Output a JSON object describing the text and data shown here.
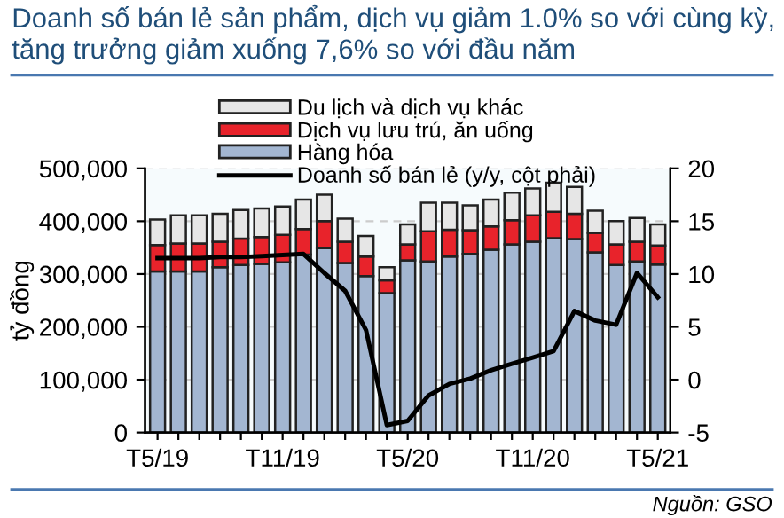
{
  "chart_data": {
    "type": "bar",
    "stacked": true,
    "title": "Doanh số bán lẻ sản phẩm, dịch vụ giảm 1.0% so với cùng kỳ,\ntăng trưởng giảm xuống 7,6% so với đầu năm",
    "ylabel": "tỷ đồng",
    "categories": [
      "T5/19",
      null,
      null,
      null,
      null,
      null,
      "T11/19",
      null,
      null,
      null,
      null,
      null,
      "T5/20",
      null,
      null,
      null,
      null,
      null,
      "T11/20",
      null,
      null,
      null,
      null,
      null,
      "T5/21"
    ],
    "series": [
      {
        "name": "Hàng hóa",
        "color": "#a3b6d1",
        "values": [
          305000,
          305000,
          305000,
          313000,
          317000,
          319000,
          322000,
          337000,
          349000,
          321000,
          296000,
          264000,
          326000,
          324000,
          333000,
          338000,
          346000,
          356000,
          361000,
          368000,
          366000,
          341000,
          317000,
          324000,
          318000
        ]
      },
      {
        "name": "Dịch vụ lưu trú, ăn uống",
        "color": "#e8232b",
        "values": [
          50000,
          53000,
          53000,
          48000,
          50000,
          51000,
          52000,
          48000,
          51000,
          40000,
          37000,
          24000,
          30000,
          57000,
          51000,
          45000,
          44000,
          46000,
          50000,
          50000,
          48000,
          37000,
          39000,
          37000,
          36000
        ]
      },
      {
        "name": "Du lịch và dịch vụ khác",
        "color": "#e6e6e6",
        "values": [
          48000,
          53000,
          53000,
          53000,
          54000,
          54000,
          54000,
          56000,
          50000,
          44000,
          39000,
          25000,
          38000,
          54000,
          51000,
          47000,
          51000,
          52000,
          51000,
          55000,
          51000,
          42000,
          44000,
          45000,
          40000
        ]
      },
      {
        "name": "Doanh số bán lẻ (y/y, cột phải)",
        "type": "line",
        "axis": "y2",
        "color": "#000000",
        "values": [
          11.5,
          11.5,
          11.5,
          11.6,
          11.6,
          11.7,
          11.8,
          11.9,
          10.1,
          8.4,
          4.7,
          -4.3,
          -3.9,
          -1.5,
          -0.4,
          0.1,
          0.9,
          1.5,
          2.1,
          2.7,
          6.5,
          5.6,
          5.2,
          10.1,
          7.8
        ]
      }
    ],
    "ylim": [
      0,
      500000
    ],
    "yticks": [
      {
        "value": 0,
        "label": "0"
      },
      {
        "value": 100000,
        "label": "100,000"
      },
      {
        "value": 200000,
        "label": "200,000"
      },
      {
        "value": 300000,
        "label": "300,000"
      },
      {
        "value": 400000,
        "label": "400,000"
      },
      {
        "value": 500000,
        "label": "500,000"
      }
    ],
    "y2lim": [
      -5,
      20
    ],
    "y2ticks": [
      -5,
      0,
      5,
      10,
      15,
      20
    ],
    "grid": "y",
    "legend": "top",
    "annotations": [
      "Nguồn: GSO"
    ]
  }
}
